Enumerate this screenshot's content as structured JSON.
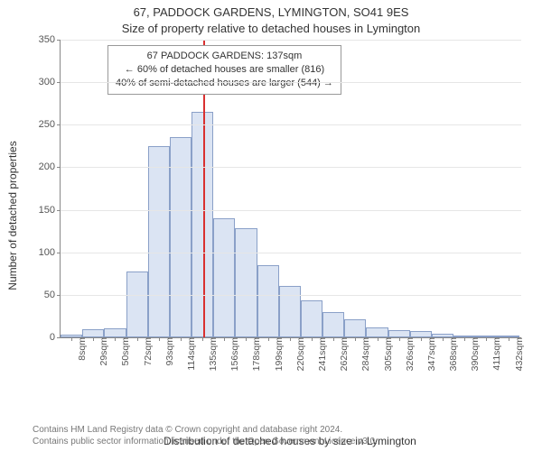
{
  "header": {
    "address": "67, PADDOCK GARDENS, LYMINGTON, SO41 9ES",
    "subtitle": "Size of property relative to detached houses in Lymington"
  },
  "chart": {
    "type": "histogram",
    "ylabel": "Number of detached properties",
    "xlabel": "Distribution of detached houses by size in Lymington",
    "background_color": "#ffffff",
    "grid_color": "#e6e6e6",
    "axis_color": "#888888",
    "bar_fill": "#dbe4f3",
    "bar_stroke": "#8aa0c8",
    "refline_color": "#d93030",
    "ylim": [
      0,
      350
    ],
    "ytick_step": 50,
    "yticks": [
      0,
      50,
      100,
      150,
      200,
      250,
      300,
      350
    ],
    "x_min": 0,
    "x_max": 443,
    "bin_width": 21,
    "refline_x": 137,
    "x_tick_labels": [
      "8sqm",
      "29sqm",
      "50sqm",
      "72sqm",
      "93sqm",
      "114sqm",
      "135sqm",
      "156sqm",
      "178sqm",
      "199sqm",
      "220sqm",
      "241sqm",
      "262sqm",
      "284sqm",
      "305sqm",
      "326sqm",
      "347sqm",
      "368sqm",
      "390sqm",
      "411sqm",
      "432sqm"
    ],
    "values": [
      3,
      10,
      11,
      77,
      225,
      235,
      265,
      140,
      128,
      85,
      60,
      44,
      30,
      21,
      12,
      8,
      7,
      4,
      2,
      1,
      1
    ],
    "legend": {
      "line1": "67 PADDOCK GARDENS: 137sqm",
      "line2": "← 60% of detached houses are smaller (816)",
      "line3": "40% of semi-detached houses are larger (544) →"
    },
    "title_fontsize": 13,
    "label_fontsize": 12,
    "tick_fontsize": 11
  },
  "footer": {
    "line1": "Contains HM Land Registry data © Crown copyright and database right 2024.",
    "line2": "Contains public sector information licensed under the Open Government Licence v3.0."
  }
}
